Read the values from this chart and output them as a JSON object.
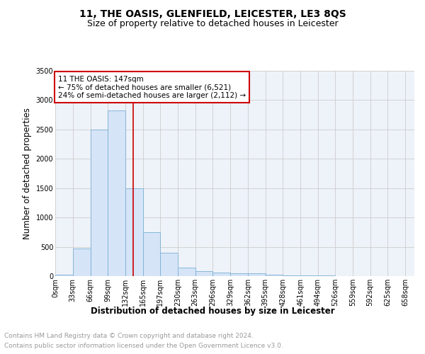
{
  "title": "11, THE OASIS, GLENFIELD, LEICESTER, LE3 8QS",
  "subtitle": "Size of property relative to detached houses in Leicester",
  "xlabel": "Distribution of detached houses by size in Leicester",
  "ylabel": "Number of detached properties",
  "footer_line1": "Contains HM Land Registry data © Crown copyright and database right 2024.",
  "footer_line2": "Contains public sector information licensed under the Open Government Licence v3.0.",
  "bin_labels": [
    "0sqm",
    "33sqm",
    "66sqm",
    "99sqm",
    "132sqm",
    "165sqm",
    "197sqm",
    "230sqm",
    "263sqm",
    "296sqm",
    "329sqm",
    "362sqm",
    "395sqm",
    "428sqm",
    "461sqm",
    "494sqm",
    "526sqm",
    "559sqm",
    "592sqm",
    "625sqm",
    "658sqm"
  ],
  "bin_edges": [
    0,
    33,
    66,
    99,
    132,
    165,
    197,
    230,
    263,
    296,
    329,
    362,
    395,
    428,
    461,
    494,
    526,
    559,
    592,
    625,
    658
  ],
  "bar_heights": [
    20,
    470,
    2500,
    2820,
    1500,
    750,
    400,
    140,
    80,
    55,
    50,
    50,
    30,
    15,
    10,
    8,
    5,
    5,
    3,
    3,
    2
  ],
  "bar_color": "#d6e4f7",
  "bar_edge_color": "#7ab0d4",
  "vline_x": 147,
  "vline_color": "#cc0000",
  "annotation_line1": "11 THE OASIS: 147sqm",
  "annotation_line2": "← 75% of detached houses are smaller (6,521)",
  "annotation_line3": "24% of semi-detached houses are larger (2,112) →",
  "annotation_box_color": "#cc0000",
  "annotation_text_color": "#000000",
  "ylim": [
    0,
    3500
  ],
  "yticks": [
    0,
    500,
    1000,
    1500,
    2000,
    2500,
    3000,
    3500
  ],
  "grid_color": "#cccccc",
  "bg_color": "#eef2f9",
  "title_fontsize": 10,
  "subtitle_fontsize": 9,
  "axis_label_fontsize": 8.5,
  "tick_fontsize": 7,
  "annotation_fontsize": 7.5,
  "footer_fontsize": 6.5,
  "footer_color": "#999999"
}
